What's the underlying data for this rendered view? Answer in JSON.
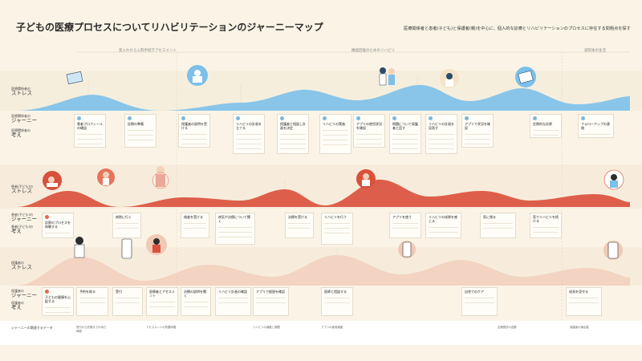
{
  "title": "子どもの医療プロセスについてリハビリテーションのジャーニーマップ",
  "subtitle": "医療関係者と患者(子ども)と保護者(親)を中心に、個人的な診療とリハビリテーションのプロセスに存在する問題点を探す",
  "phases": [
    "受入れから入院手続きアセスメント",
    "機能回復のためのリハビリ",
    "退院後の生活"
  ],
  "rows": {
    "staff_stress": {
      "title": "ストレス",
      "sub": "医療関係者の"
    },
    "staff_journey": {
      "title": "ジャーニー",
      "sub": "医療関係者の"
    },
    "staff_thought": {
      "title": "考え",
      "sub": "医療関係者の"
    },
    "child_stress": {
      "title": "ストレス",
      "sub": "患者(子ども)の"
    },
    "child_journey": {
      "title": "ジャーニー",
      "sub": "患者(子ども)の"
    },
    "child_thought": {
      "title": "考え",
      "sub": "患者(子ども)の"
    },
    "parent_stress": {
      "title": "ストレス",
      "sub": "保護者の"
    },
    "parent_journey": {
      "title": "ジャーニー",
      "sub": "保護者の"
    },
    "parent_thought": {
      "title": "考え",
      "sub": "保護者の"
    },
    "footer": {
      "title": "ジャーニーの関連するデータ",
      "sub": ""
    }
  },
  "staff_cards": [
    "患者プロフィールの確認",
    "診療の準備",
    "保護者の説明を受ける",
    "リハビリの計画を立てる",
    "保護者と相談し計画を決定",
    "リハビリの実施",
    "アプリの使用状況を確認",
    "問題について保護者と話す",
    "リハビリの計画を見直す",
    "アプリで状況を確認",
    "定期的な診察",
    "フォローアップの連絡"
  ],
  "child_cards": [
    "診察のプロセスを体験する",
    "病院に行く",
    "検査を受ける",
    "病気や治療について聞く",
    "治療を受ける",
    "リハビリを行う",
    "アプリを使う",
    "リハビリの成果を感じる",
    "家に帰る",
    "家でリハビリを続ける"
  ],
  "parent_cards": [
    "子どもの健康を心配する",
    "予約を取る",
    "受付",
    "医療者とアセスメント",
    "治療の説明を聞く",
    "リハビリ計画の確認",
    "アプリで経過を確認",
    "医師と相談する",
    "自宅でのケア",
    "成長を見守る"
  ],
  "footer_notes": [
    "受付から診察までの待ち時間",
    "アセスメントの所要時間",
    "リハビリの頻度と期間",
    "アプリの使用頻度",
    "定期受診の回数",
    "保護者の満足度"
  ],
  "colors": {
    "staff_wave": "#7cc0ea",
    "child_wave": "#d9503b",
    "parent_wave": "#f1c9b5",
    "accent": "#e06a4f",
    "background": "#fbf4e6"
  }
}
